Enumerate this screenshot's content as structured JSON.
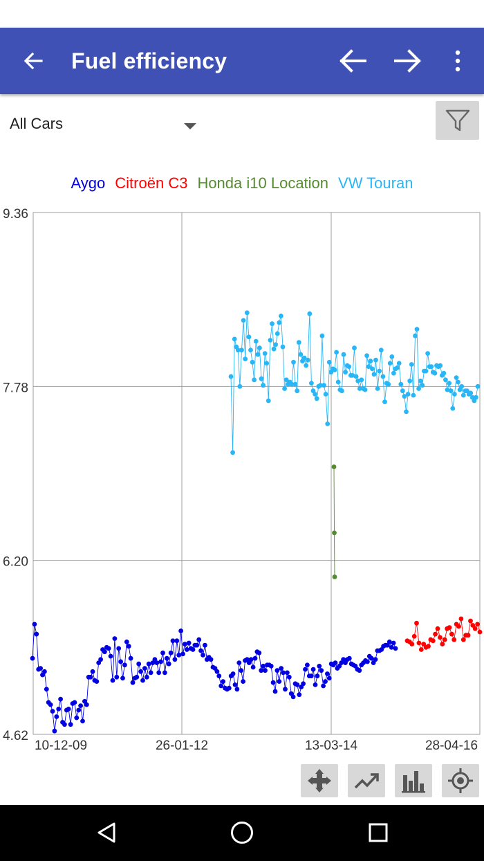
{
  "app_bar": {
    "title": "Fuel efficiency",
    "background": "#3f51b5",
    "icons": [
      "arrow-back-icon",
      "arrow-left-icon",
      "arrow-right-icon",
      "more-vert-icon"
    ]
  },
  "filter": {
    "selected": "All Cars",
    "filter_icon": "filter-icon"
  },
  "chart_data": {
    "type": "line",
    "title": "",
    "xlabel": "",
    "ylabel": "",
    "ylim": [
      4.62,
      9.36
    ],
    "y_ticks": [
      "9.36",
      "7.78",
      "6.20",
      "4.62"
    ],
    "x_ticks": [
      "10-12-09",
      "26-01-12",
      "13-03-14",
      "28-04-16"
    ],
    "grid": true,
    "legend_position": "top",
    "series": [
      {
        "name": "Aygo",
        "color": "#0000e0",
        "values": [
          5.31,
          5.62,
          5.53,
          5.21,
          5.22,
          5.16,
          5.19,
          5.03,
          4.91,
          4.89,
          4.83,
          4.65,
          4.78,
          4.85,
          4.94,
          4.73,
          4.71,
          4.84,
          4.85,
          4.71,
          4.9,
          4.91,
          4.77,
          4.84,
          4.88,
          4.74,
          4.92,
          4.89,
          5.14,
          5.14,
          5.19,
          5.11,
          5.1,
          5.27,
          5.3,
          5.39,
          5.37,
          5.41,
          5.4,
          5.33,
          5.11,
          5.49,
          5.14,
          5.4,
          5.28,
          5.13,
          5.25,
          5.46,
          5.42,
          5.31,
          5.09,
          5.13,
          5.14,
          5.26,
          5.19,
          5.11,
          5.22,
          5.14,
          5.26,
          5.18,
          5.27,
          5.3,
          5.27,
          5.18,
          5.28,
          5.36,
          5.18,
          5.31,
          5.26,
          5.36,
          5.47,
          5.3,
          5.47,
          5.34,
          5.56,
          5.35,
          5.44,
          5.39,
          5.45,
          5.4,
          5.39,
          5.43,
          5.43,
          5.48,
          5.38,
          5.34,
          5.43,
          5.3,
          5.32,
          5.3,
          5.23,
          5.22,
          5.19,
          5.15,
          5.06,
          5.1,
          5.04,
          5.03,
          5.04,
          5.15,
          5.17,
          5.07,
          5.03,
          5.27,
          5.2,
          5.1,
          5.29,
          5.3,
          5.27,
          5.3,
          5.23,
          5.31,
          5.37,
          5.36,
          5.2,
          5.24,
          5.2,
          5.25,
          5.25,
          5.24,
          5.09,
          5.01,
          5.2,
          5.1,
          5.22,
          5.18,
          5.03,
          5.18,
          5.14,
          4.99,
          4.96,
          5.08,
          5.07,
          4.98,
          5.05,
          5.08,
          5.21,
          5.25,
          5.15,
          5.15,
          5.21,
          5.07,
          5.15,
          5.24,
          5.2,
          5.06,
          5.1,
          5.17,
          5.13,
          5.26,
          5.25,
          5.27,
          5.22,
          5.24,
          5.27,
          5.3,
          5.27,
          5.3,
          5.31,
          5.26,
          5.25,
          5.24,
          5.21,
          5.2,
          5.25,
          5.27,
          5.29,
          5.28,
          5.33,
          5.31,
          5.27,
          5.3,
          5.38,
          5.38,
          5.39,
          5.42,
          5.43,
          5.43,
          5.46,
          5.41,
          5.45,
          5.4
        ]
      },
      {
        "name": "Citroën C3",
        "color": "#ff0000",
        "values": [
          5.47,
          5.46,
          5.44,
          5.51,
          5.63,
          5.45,
          5.39,
          5.44,
          5.41,
          5.42,
          5.48,
          5.47,
          5.53,
          5.58,
          5.5,
          5.44,
          5.48,
          5.58,
          5.59,
          5.53,
          5.48,
          5.62,
          5.6,
          5.67,
          5.48,
          5.52,
          5.52,
          5.65,
          5.61,
          5.58,
          5.62,
          5.55
        ]
      },
      {
        "name": "Honda i10 Location",
        "color": "#558b2f",
        "values": [
          7.05,
          6.45,
          6.05
        ]
      },
      {
        "name": "VW Touran",
        "color": "#29b6f6",
        "values": [
          7.87,
          7.18,
          8.21,
          8.14,
          8.11,
          7.78,
          8.11,
          8.38,
          8.03,
          8.45,
          8.23,
          8.11,
          8.0,
          7.84,
          8.19,
          8.07,
          8.13,
          7.85,
          7.79,
          8.08,
          7.99,
          7.65,
          8.2,
          8.35,
          8.12,
          8.16,
          8.26,
          8.36,
          8.42,
          8.14,
          7.76,
          7.84,
          7.8,
          7.82,
          7.8,
          8.0,
          7.8,
          7.74,
          8.18,
          8.07,
          8.01,
          8.04,
          7.97,
          8.02,
          8.44,
          7.81,
          7.74,
          7.71,
          7.67,
          7.78,
          7.79,
          8.24,
          7.79,
          7.71,
          7.44,
          8.0,
          7.91,
          7.94,
          7.93,
          8.09,
          7.82,
          7.75,
          7.74,
          8.07,
          7.91,
          7.97,
          7.96,
          7.88,
          7.88,
          8.13,
          7.87,
          7.83,
          7.76,
          7.84,
          7.76,
          7.75,
          8.06,
          7.96,
          8.01,
          7.94,
          7.89,
          8.02,
          7.76,
          7.92,
          8.11,
          7.87,
          7.64,
          7.81,
          7.8,
          7.99,
          8.05,
          7.9,
          7.94,
          7.95,
          7.99,
          7.8,
          7.74,
          7.69,
          7.55,
          7.71,
          7.83,
          7.98,
          7.7,
          8.24,
          8.3,
          7.76,
          7.83,
          7.79,
          7.92,
          7.92,
          8.08,
          7.96,
          7.96,
          7.91,
          7.9,
          7.97,
          7.96,
          7.97,
          7.88,
          7.9,
          7.84,
          7.75,
          7.81,
          7.74,
          7.58,
          7.71,
          7.86,
          7.82,
          7.75,
          7.78,
          7.7,
          7.74,
          7.74,
          7.71,
          7.72,
          7.68,
          7.65,
          7.68,
          7.78
        ]
      }
    ]
  },
  "toolbar": {
    "tools": [
      "pan-icon",
      "trend-icon",
      "bar-chart-icon",
      "target-icon"
    ]
  },
  "nav": {
    "icons": [
      "back-triangle-icon",
      "home-circle-icon",
      "recents-square-icon"
    ]
  }
}
